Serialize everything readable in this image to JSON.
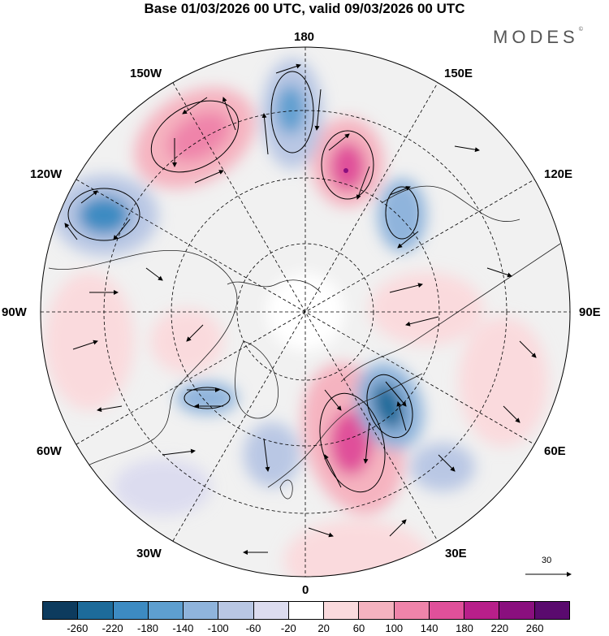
{
  "title": "Base 01/03/2026 00 UTC, valid 09/03/2026 00 UTC",
  "brand": "MODES",
  "brand_mark": "©",
  "longitude_labels": {
    "top": "180",
    "bottom": "0",
    "left": "90W",
    "right": "90E",
    "lon150w": "150W",
    "lon150e": "150E",
    "lon120w": "120W",
    "lon120e": "120E",
    "lon60w": "60W",
    "lon60e": "60E",
    "lon30w": "30W",
    "lon30e": "30E"
  },
  "reference_vector": {
    "value": "30",
    "icon": "arrow-right-icon"
  },
  "colorbar": {
    "labels": [
      "-260",
      "-220",
      "-180",
      "-140",
      "-100",
      "-60",
      "-20",
      "20",
      "60",
      "100",
      "140",
      "180",
      "220",
      "260"
    ],
    "colors": [
      "#0d3b5e",
      "#1d6b9a",
      "#3d8bc2",
      "#5e9fd0",
      "#8fb4dc",
      "#b9c7e4",
      "#dcdcef",
      "#ffffff",
      "#fadadd",
      "#f5b3c0",
      "#ef84aa",
      "#e0509a",
      "#b81f8a",
      "#8a0f7e",
      "#5a0a6e"
    ]
  },
  "map": {
    "projection": "north-polar-stereographic",
    "anomalies": [
      {
        "name": "high-north-pacific",
        "sign": "positive",
        "peak": 110
      },
      {
        "name": "low-aleutian",
        "sign": "negative",
        "peak": -150
      },
      {
        "name": "high-east-siberia",
        "sign": "positive",
        "peak": 200
      },
      {
        "name": "low-kamchatka",
        "sign": "negative",
        "peak": -150
      },
      {
        "name": "low-alaska-canada",
        "sign": "negative",
        "peak": -200
      },
      {
        "name": "high-central-siberia",
        "sign": "positive",
        "peak": 80
      },
      {
        "name": "low-ural-scandinavia",
        "sign": "negative",
        "peak": -200
      },
      {
        "name": "high-europe",
        "sign": "positive",
        "peak": 160
      },
      {
        "name": "low-labrador",
        "sign": "negative",
        "peak": -150
      },
      {
        "name": "high-hudson",
        "sign": "positive",
        "peak": 70
      },
      {
        "name": "low-north-atlantic",
        "sign": "negative",
        "peak": -120
      },
      {
        "name": "high-us",
        "sign": "positive",
        "peak": 60
      }
    ]
  }
}
